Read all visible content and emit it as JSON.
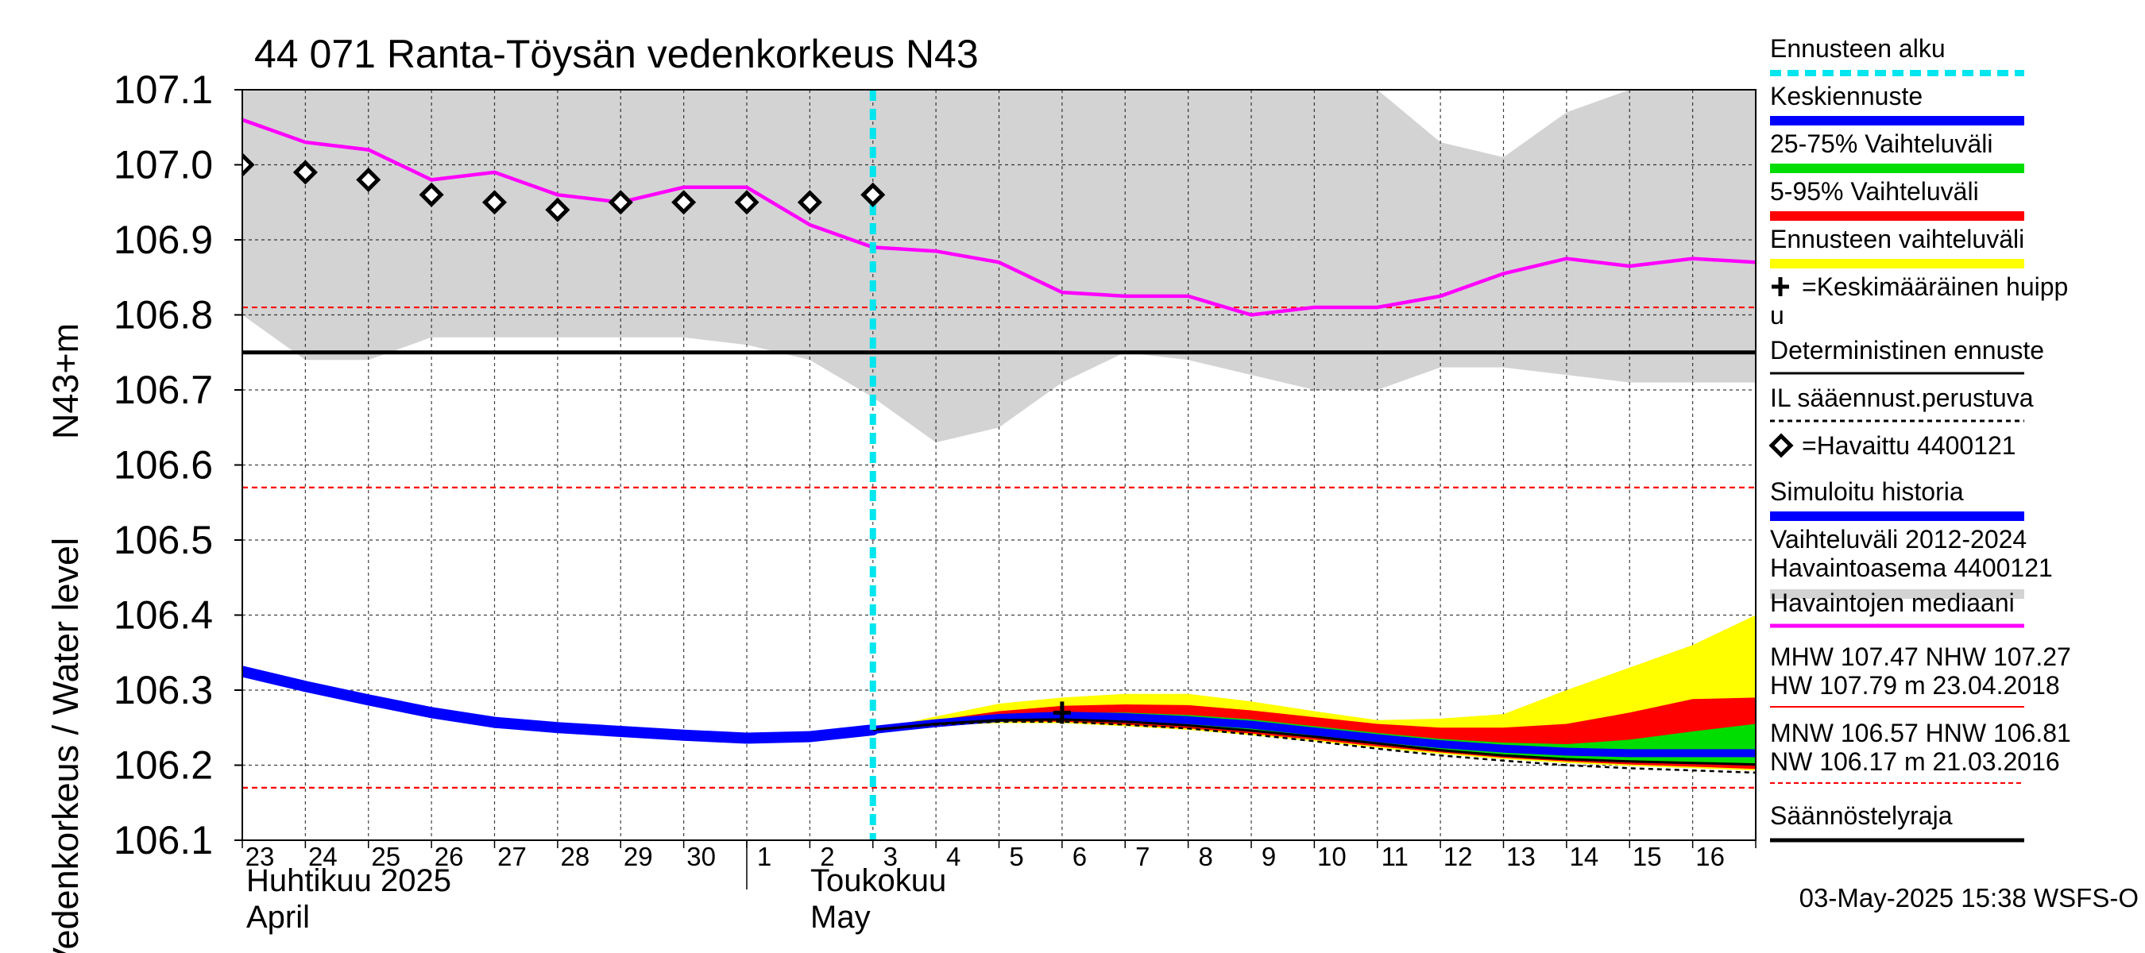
{
  "chart_data": {
    "type": "line",
    "title": "44 071 Ranta-Töysän vedenkorkeus N43",
    "ylabel": "Vedenkorkeus / Water level",
    "ylabel_unit": "N43+m",
    "ylim": [
      106.1,
      107.1
    ],
    "yticks": [
      "106.1",
      "106.2",
      "106.3",
      "106.4",
      "106.5",
      "106.6",
      "106.7",
      "106.8",
      "106.9",
      "107.0",
      "107.1"
    ],
    "day_labels": [
      "23",
      "24",
      "25",
      "26",
      "27",
      "28",
      "29",
      "30",
      "1",
      "2",
      "3",
      "4",
      "5",
      "6",
      "7",
      "8",
      "9",
      "10",
      "11",
      "12",
      "13",
      "14",
      "15",
      "16"
    ],
    "x_day_range": [
      0,
      24
    ],
    "month_labels": [
      {
        "fi": "Huhtikuu  2025",
        "en": "April",
        "day": 0
      },
      {
        "fi": "Toukokuu",
        "en": "May",
        "day": 9
      }
    ],
    "month_divider_day": 8,
    "forecast_start_day": 10.0,
    "reference_lines": [
      {
        "value": 106.81,
        "style": "dashed",
        "color": "#ff0000"
      },
      {
        "value": 106.57,
        "style": "dashed",
        "color": "#ff0000"
      },
      {
        "value": 106.17,
        "style": "dashed",
        "color": "#ff0000"
      },
      {
        "value": 106.75,
        "style": "solid",
        "color": "#000000"
      }
    ],
    "historical_range": {
      "name": "Vaihteluväli 2012-2024 Havaintoasema 4400121",
      "color": "#d3d3d3",
      "x": [
        0,
        1,
        2,
        3,
        4,
        5,
        6,
        7,
        8,
        9,
        10,
        11,
        12,
        13,
        14,
        15,
        16,
        17,
        18,
        19,
        20,
        21,
        22,
        23,
        24
      ],
      "upper": [
        107.1,
        107.1,
        107.1,
        107.1,
        107.1,
        107.1,
        107.1,
        107.1,
        107.1,
        107.1,
        107.1,
        107.1,
        107.1,
        107.1,
        107.1,
        107.1,
        107.1,
        107.1,
        107.1,
        107.03,
        107.01,
        107.07,
        107.1,
        107.1,
        107.1
      ],
      "lower": [
        106.8,
        106.74,
        106.74,
        106.77,
        106.77,
        106.77,
        106.77,
        106.77,
        106.76,
        106.74,
        106.69,
        106.63,
        106.65,
        106.71,
        106.75,
        106.74,
        106.72,
        106.7,
        106.7,
        106.73,
        106.73,
        106.72,
        106.71,
        106.71,
        106.71
      ]
    },
    "median": {
      "name": "Havaintojen mediaani",
      "color": "#ff00ff",
      "x": [
        0,
        1,
        2,
        3,
        4,
        5,
        6,
        7,
        8,
        9,
        10,
        11,
        12,
        13,
        14,
        15,
        16,
        17,
        18,
        19,
        20,
        21,
        22,
        23,
        24
      ],
      "values": [
        107.06,
        107.03,
        107.02,
        106.98,
        106.99,
        106.96,
        106.95,
        106.97,
        106.97,
        106.92,
        106.89,
        106.885,
        106.87,
        106.83,
        106.825,
        106.825,
        106.8,
        106.81,
        106.81,
        106.825,
        106.855,
        106.875,
        106.865,
        106.875,
        106.87
      ]
    },
    "observed": {
      "name": "=Havaittu 4400121",
      "x": [
        0,
        1,
        2,
        3,
        4,
        5,
        6,
        7,
        8,
        9,
        10
      ],
      "values": [
        107.0,
        106.99,
        106.98,
        106.96,
        106.95,
        106.94,
        106.95,
        106.95,
        106.95,
        106.95,
        106.96
      ]
    },
    "simulated": {
      "name": "Simuloitu historia",
      "color": "#0000ff",
      "x": [
        0,
        1,
        2,
        3,
        4,
        5,
        6,
        7,
        8,
        9,
        10
      ],
      "values": [
        106.325,
        106.305,
        106.287,
        106.27,
        106.257,
        106.25,
        106.245,
        106.24,
        106.236,
        106.238,
        106.247
      ]
    },
    "forecast_x": [
      10,
      11,
      12,
      13,
      14,
      15,
      16,
      17,
      18,
      19,
      20,
      21,
      22,
      23,
      24
    ],
    "forecast_range": {
      "name": "Ennusteen vaihteluväli",
      "color": "#ffff00",
      "upper": [
        106.247,
        106.265,
        106.282,
        106.29,
        106.295,
        106.295,
        106.285,
        106.272,
        106.26,
        106.262,
        106.268,
        106.3,
        106.33,
        106.36,
        106.4
      ],
      "lower": [
        106.247,
        106.253,
        106.256,
        106.256,
        106.252,
        106.247,
        106.24,
        106.232,
        106.223,
        106.215,
        106.208,
        106.203,
        106.199,
        106.196,
        106.193
      ]
    },
    "band_5_95": {
      "name": "5-95% Vaihteluväli",
      "color": "#ff0000",
      "upper": [
        106.247,
        106.26,
        106.272,
        106.279,
        106.281,
        106.28,
        106.273,
        106.264,
        106.255,
        106.25,
        106.25,
        106.255,
        106.27,
        106.288,
        106.29
      ],
      "lower": [
        106.247,
        106.255,
        106.258,
        106.258,
        106.254,
        106.249,
        106.242,
        106.234,
        106.225,
        106.217,
        106.21,
        106.205,
        106.201,
        106.198,
        106.195
      ]
    },
    "band_25_75": {
      "name": "25-75% Vaihteluväli",
      "color": "#00dd00",
      "upper": [
        106.247,
        106.258,
        106.266,
        106.27,
        106.27,
        106.267,
        106.261,
        106.252,
        106.243,
        106.235,
        106.23,
        106.228,
        106.234,
        106.245,
        106.255
      ],
      "lower": [
        106.247,
        106.255,
        106.26,
        106.261,
        106.258,
        106.253,
        106.246,
        106.238,
        106.229,
        106.221,
        106.214,
        106.209,
        106.205,
        106.203,
        106.2
      ]
    },
    "mean_forecast": {
      "name": "Keskiennuste",
      "color": "#0000ff",
      "values": [
        106.247,
        106.256,
        106.263,
        106.266,
        106.264,
        106.26,
        106.254,
        106.245,
        106.236,
        106.228,
        106.222,
        106.218,
        106.216,
        106.216,
        106.216
      ]
    },
    "deterministic": {
      "name": "Deterministinen ennuste",
      "values": [
        106.247,
        106.255,
        106.26,
        106.261,
        106.258,
        106.253,
        106.246,
        106.238,
        106.229,
        106.22,
        106.213,
        106.208,
        106.205,
        106.203,
        106.201
      ]
    },
    "il_forecast": {
      "name": "IL sääennust.perustuva",
      "values": [
        106.247,
        106.254,
        106.258,
        106.258,
        106.254,
        106.249,
        106.241,
        106.232,
        106.222,
        106.213,
        106.206,
        106.2,
        106.196,
        106.193,
        106.19
      ]
    },
    "mean_peak": {
      "name": "=Keskimääräinen huippu",
      "day": 13.0,
      "value": 106.27
    }
  },
  "legend": {
    "items": [
      {
        "label": "Ennusteen alku",
        "sample": "dash-cyan",
        "color": "#00e5ee"
      },
      {
        "label": "Keskiennuste",
        "sample": "bar",
        "color": "#0000ff"
      },
      {
        "label": "25-75% Vaihteluväli",
        "sample": "bar",
        "color": "#00dd00"
      },
      {
        "label": "5-95% Vaihteluväli",
        "sample": "bar",
        "color": "#ff0000"
      },
      {
        "label": "Ennusteen vaihteluväli",
        "sample": "bar",
        "color": "#ffff00"
      },
      {
        "label": "=Keskimääräinen huipp",
        "label2": "u",
        "sample": "plus-marker",
        "color": "#000000"
      },
      {
        "label": "Deterministinen ennuste",
        "sample": "line",
        "color": "#000000"
      },
      {
        "label": "IL sääennust.perustuva",
        "sample": "dashed",
        "color": "#000000"
      },
      {
        "label": "=Havaittu 4400121",
        "sample": "diamond-marker",
        "color": "#000000"
      },
      {
        "label": "Simuloitu historia",
        "sample": "bar",
        "color": "#0000ff"
      },
      {
        "label": "Vaihteluväli 2012-2024",
        "label2": " Havaintoasema 4400121",
        "sample": "bar",
        "color": "#d3d3d3"
      },
      {
        "label": "Havaintojen mediaani",
        "sample": "line",
        "color": "#ff00ff"
      }
    ],
    "stats": [
      {
        "line1": "MHW 107.47 NHW 107.27",
        "line2": "HW 107.79 m 23.04.2018",
        "color": "#ff0000"
      },
      {
        "line1": "MNW 106.57 HNW 106.81",
        "line2": "NW 106.17 m 21.03.2016",
        "color": "#ff0000"
      }
    ],
    "regulation": {
      "label": "Säännöstelyraja",
      "color": "#000000"
    }
  },
  "footer": {
    "timestamp": "03-May-2025 15:38 WSFS-O"
  }
}
